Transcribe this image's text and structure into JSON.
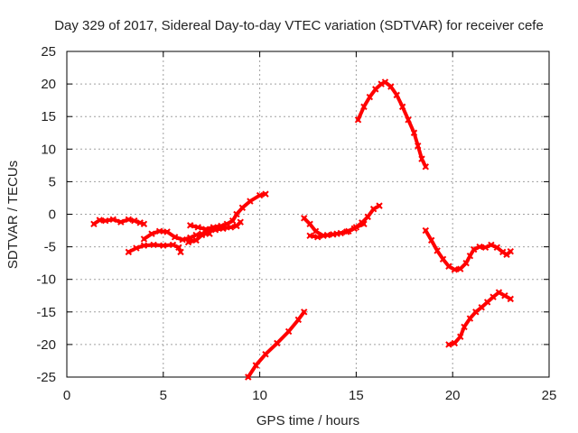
{
  "chart_data": {
    "type": "line",
    "title": "Day 329 of 2017, Sidereal Day-to-day VTEC variation (SDTVAR) for receiver cefe",
    "xlabel": "GPS time / hours",
    "ylabel": "SDTVAR / TECUs",
    "xlim": [
      0,
      25
    ],
    "ylim": [
      -25,
      25
    ],
    "xticks": [
      0,
      5,
      10,
      15,
      20,
      25
    ],
    "yticks": [
      -25,
      -20,
      -15,
      -10,
      -5,
      0,
      5,
      10,
      15,
      20,
      25
    ],
    "grid": true,
    "series_color": "#ff0000",
    "series": [
      {
        "points": [
          [
            1.4,
            -1.5
          ],
          [
            1.7,
            -0.9
          ],
          [
            2.0,
            -1.0
          ],
          [
            2.4,
            -0.8
          ],
          [
            2.8,
            -1.2
          ],
          [
            3.2,
            -0.8
          ],
          [
            3.5,
            -1.0
          ],
          [
            3.8,
            -1.3
          ],
          [
            4.0,
            -1.5
          ]
        ]
      },
      {
        "points": [
          [
            3.2,
            -5.8
          ],
          [
            3.6,
            -5.2
          ],
          [
            4.0,
            -4.8
          ],
          [
            4.5,
            -4.7
          ],
          [
            5.0,
            -4.8
          ],
          [
            5.5,
            -4.7
          ],
          [
            5.8,
            -5.1
          ],
          [
            5.9,
            -5.8
          ]
        ]
      },
      {
        "points": [
          [
            4.0,
            -3.8
          ],
          [
            4.4,
            -3.0
          ],
          [
            4.8,
            -2.6
          ],
          [
            5.2,
            -2.7
          ],
          [
            5.6,
            -3.5
          ],
          [
            6.0,
            -3.9
          ],
          [
            6.4,
            -3.6
          ],
          [
            6.7,
            -3.2
          ],
          [
            7.0,
            -3.0
          ],
          [
            7.4,
            -3.0
          ]
        ]
      },
      {
        "points": [
          [
            6.3,
            -4.3
          ],
          [
            6.7,
            -4.0
          ],
          [
            7.0,
            -3.2
          ],
          [
            7.3,
            -2.6
          ],
          [
            7.7,
            -2.4
          ],
          [
            8.1,
            -2.2
          ],
          [
            8.5,
            -2.0
          ],
          [
            8.8,
            -1.8
          ],
          [
            9.0,
            -1.2
          ]
        ]
      },
      {
        "points": [
          [
            6.4,
            -1.7
          ],
          [
            6.8,
            -2.0
          ],
          [
            7.2,
            -2.3
          ],
          [
            7.6,
            -2.0
          ],
          [
            8.0,
            -1.8
          ],
          [
            8.3,
            -1.5
          ],
          [
            8.6,
            -1.0
          ],
          [
            8.8,
            0.0
          ],
          [
            9.1,
            1.0
          ],
          [
            9.5,
            2.0
          ],
          [
            10.0,
            2.9
          ],
          [
            10.3,
            3.1
          ]
        ]
      },
      {
        "points": [
          [
            9.4,
            -25.0
          ],
          [
            9.8,
            -23.2
          ],
          [
            10.3,
            -21.5
          ],
          [
            10.9,
            -19.8
          ],
          [
            11.5,
            -18.0
          ],
          [
            12.0,
            -16.2
          ],
          [
            12.3,
            -15.0
          ]
        ]
      },
      {
        "points": [
          [
            12.3,
            -0.6
          ],
          [
            12.6,
            -1.5
          ],
          [
            12.9,
            -2.6
          ],
          [
            13.3,
            -3.3
          ],
          [
            13.8,
            -3.1
          ],
          [
            14.2,
            -2.9
          ],
          [
            14.6,
            -2.6
          ],
          [
            14.9,
            -2.2
          ],
          [
            15.3,
            -1.3
          ],
          [
            15.6,
            -0.4
          ],
          [
            15.9,
            0.8
          ],
          [
            16.2,
            1.3
          ]
        ]
      },
      {
        "points": [
          [
            12.6,
            -3.3
          ],
          [
            13.0,
            -3.5
          ],
          [
            13.5,
            -3.2
          ],
          [
            14.0,
            -3.0
          ],
          [
            14.5,
            -2.7
          ],
          [
            15.0,
            -2.0
          ],
          [
            15.4,
            -1.5
          ]
        ]
      },
      {
        "points": [
          [
            15.1,
            14.5
          ],
          [
            15.4,
            16.5
          ],
          [
            15.7,
            18.0
          ],
          [
            16.0,
            19.2
          ],
          [
            16.3,
            20.0
          ],
          [
            16.5,
            20.3
          ],
          [
            16.8,
            19.6
          ],
          [
            17.1,
            18.3
          ],
          [
            17.4,
            16.5
          ],
          [
            17.7,
            14.5
          ],
          [
            18.0,
            12.5
          ],
          [
            18.2,
            10.5
          ],
          [
            18.4,
            8.5
          ],
          [
            18.6,
            7.3
          ]
        ]
      },
      {
        "points": [
          [
            18.6,
            -2.5
          ],
          [
            18.9,
            -4.0
          ],
          [
            19.2,
            -5.6
          ],
          [
            19.5,
            -6.9
          ],
          [
            19.8,
            -8.0
          ],
          [
            20.1,
            -8.5
          ],
          [
            20.4,
            -8.4
          ],
          [
            20.7,
            -7.5
          ],
          [
            20.9,
            -6.4
          ],
          [
            21.1,
            -5.4
          ],
          [
            21.4,
            -5.0
          ],
          [
            21.7,
            -5.1
          ],
          [
            22.0,
            -4.7
          ],
          [
            22.3,
            -5.1
          ],
          [
            22.6,
            -5.8
          ],
          [
            22.8,
            -6.2
          ],
          [
            23.0,
            -5.7
          ]
        ]
      },
      {
        "points": [
          [
            19.8,
            -20.0
          ],
          [
            20.1,
            -19.8
          ],
          [
            20.4,
            -18.8
          ],
          [
            20.6,
            -17.3
          ],
          [
            20.9,
            -16.0
          ],
          [
            21.2,
            -15.0
          ],
          [
            21.5,
            -14.3
          ],
          [
            21.8,
            -13.5
          ],
          [
            22.1,
            -12.7
          ],
          [
            22.4,
            -12.0
          ],
          [
            22.7,
            -12.5
          ],
          [
            23.0,
            -13.0
          ]
        ]
      }
    ]
  }
}
